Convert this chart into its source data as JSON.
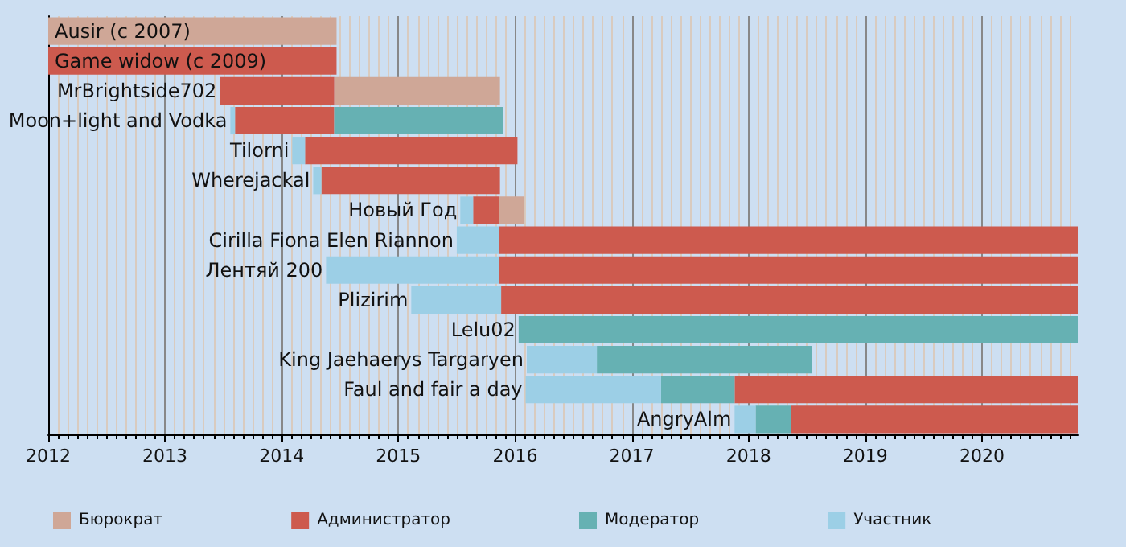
{
  "chart_data": {
    "type": "bar",
    "orientation": "horizontal",
    "categories": [
      "Ausir (c 2007)",
      "Game widow (c 2009)",
      "MrBrightside702",
      "Moon+light and Vodka",
      "Tilorni",
      "Wherejackal",
      "Новый Год",
      "Cirilla Fiona Elen Riannon",
      "Лентяй 200",
      "Plizirim",
      "Lelu02",
      "King Jaehaerys Targaryen",
      "Faul and fair a day",
      "AngryAlm"
    ],
    "series": [
      {
        "name": "Бюрократ",
        "color": "#cfa797",
        "values": [
          2.47,
          null,
          1.42,
          null,
          null,
          null,
          0.22,
          null,
          null,
          null,
          null,
          null,
          null,
          null
        ],
        "base": [
          2012,
          null,
          2014.45,
          null,
          null,
          null,
          2015.86,
          null,
          null,
          null,
          null,
          null,
          null,
          null
        ]
      },
      {
        "name": "Администратор",
        "color": "#cd5a4e",
        "values": [
          null,
          2.47,
          0.98,
          0.85,
          1.82,
          1.53,
          0.22,
          4.96,
          4.96,
          4.94,
          null,
          null,
          2.94,
          2.46
        ],
        "base": [
          null,
          2012,
          2013.47,
          2013.6,
          2014.2,
          2014.34,
          2015.64,
          2015.86,
          2015.86,
          2015.88,
          null,
          null,
          2017.88,
          2018.36
        ]
      },
      {
        "name": "Модератор",
        "color": "#66b1b3",
        "values": [
          null,
          null,
          null,
          1.45,
          null,
          null,
          null,
          null,
          null,
          null,
          4.79,
          1.84,
          0.63,
          0.3
        ],
        "base": [
          null,
          null,
          null,
          2014.45,
          null,
          null,
          null,
          null,
          null,
          null,
          2016.03,
          2016.7,
          2017.25,
          2018.06
        ]
      },
      {
        "name": "Участник",
        "color": "#9ccfe6",
        "values": [
          null,
          null,
          null,
          0.04,
          0.11,
          0.07,
          0.11,
          0.36,
          1.48,
          0.77,
          null,
          0.6,
          1.16,
          0.18
        ],
        "base": [
          null,
          null,
          null,
          2013.56,
          2014.09,
          2014.27,
          2015.53,
          2015.5,
          2014.38,
          2015.11,
          null,
          2016.1,
          2016.09,
          2017.88
        ]
      }
    ],
    "xlim": [
      2012,
      2020.82
    ],
    "xticks": [
      2012,
      2013,
      2014,
      2015,
      2016,
      2017,
      2018,
      2019,
      2020
    ],
    "grid": "x",
    "legend": "bottom"
  }
}
